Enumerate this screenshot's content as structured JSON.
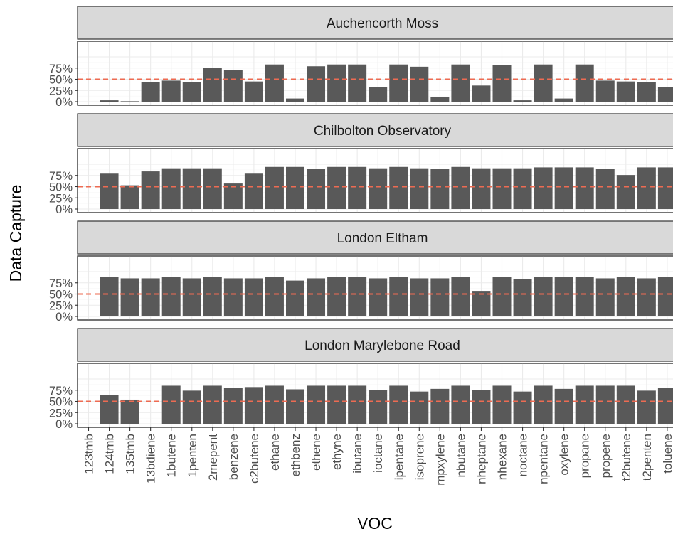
{
  "chart_data": {
    "type": "bar",
    "xlabel": "VOC",
    "ylabel": "Data Capture",
    "y_ticks": [
      "0%",
      "25%",
      "50%",
      "75%"
    ],
    "ylim": [
      0,
      100
    ],
    "reference_line": {
      "value": 50,
      "color": "#ee6b52",
      "style": "dashed"
    },
    "bar_color": "#595959",
    "strip_color": "#d9d9d9",
    "grid": true,
    "categories": [
      "123tmb",
      "124tmb",
      "135tmb",
      "13bdiene",
      "1butene",
      "1penten",
      "2mepent",
      "benzene",
      "c2butene",
      "ethane",
      "ethbenz",
      "ethene",
      "ethyne",
      "ibutane",
      "ioctane",
      "ipentane",
      "isoprene",
      "mpxylene",
      "nbutane",
      "nheptane",
      "nhexane",
      "noctane",
      "npentane",
      "oxylene",
      "propane",
      "propene",
      "t2butene",
      "t2penten",
      "toluene"
    ],
    "panels": [
      {
        "name": "Auchencorth Moss",
        "values": [
          0,
          3,
          1,
          43,
          47,
          43,
          76,
          71,
          45,
          83,
          7,
          79,
          83,
          83,
          33,
          83,
          78,
          10,
          83,
          36,
          81,
          3,
          83,
          7,
          83,
          47,
          45,
          43,
          33
        ]
      },
      {
        "name": "Chilbolton Observatory",
        "values": [
          0,
          79,
          53,
          84,
          91,
          91,
          91,
          57,
          79,
          94,
          94,
          89,
          94,
          94,
          91,
          94,
          91,
          89,
          94,
          91,
          91,
          91,
          93,
          93,
          93,
          89,
          76,
          93,
          93
        ]
      },
      {
        "name": "London Eltham",
        "values": [
          0,
          88,
          85,
          85,
          88,
          85,
          88,
          85,
          85,
          88,
          80,
          85,
          88,
          88,
          85,
          88,
          85,
          85,
          88,
          57,
          88,
          83,
          88,
          88,
          88,
          85,
          88,
          85,
          88
        ]
      },
      {
        "name": "London Marylebone Road",
        "values": [
          0,
          64,
          54,
          0,
          85,
          74,
          85,
          80,
          82,
          85,
          77,
          85,
          85,
          85,
          76,
          85,
          72,
          78,
          85,
          76,
          85,
          72,
          85,
          78,
          85,
          85,
          85,
          74,
          80
        ]
      }
    ]
  }
}
